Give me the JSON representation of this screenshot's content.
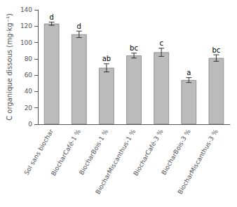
{
  "chart_data": {
    "type": "bar",
    "categories": [
      "Sol sans biochar",
      "BiocharCafé-1 %",
      "BiocharBois-1 %",
      "BiocharMiscanthus-1 %",
      "BiocharCafé-3 %",
      "BiocharBois-3 %",
      "BiocharMiscanthus-3 %"
    ],
    "values": [
      123,
      110,
      69,
      84,
      88,
      54,
      81
    ],
    "errors": [
      2,
      4,
      5,
      3,
      5,
      3,
      4
    ],
    "letters": [
      "d",
      "d",
      "ab",
      "bc",
      "c",
      "a",
      "bc"
    ],
    "color": "#bbbbbb",
    "ylabel": "C organique dissous (mg·kg⁻¹)",
    "ylim": [
      0,
      140
    ],
    "yticks": [
      0,
      20,
      40,
      60,
      80,
      100,
      120,
      140
    ],
    "grid": false
  }
}
